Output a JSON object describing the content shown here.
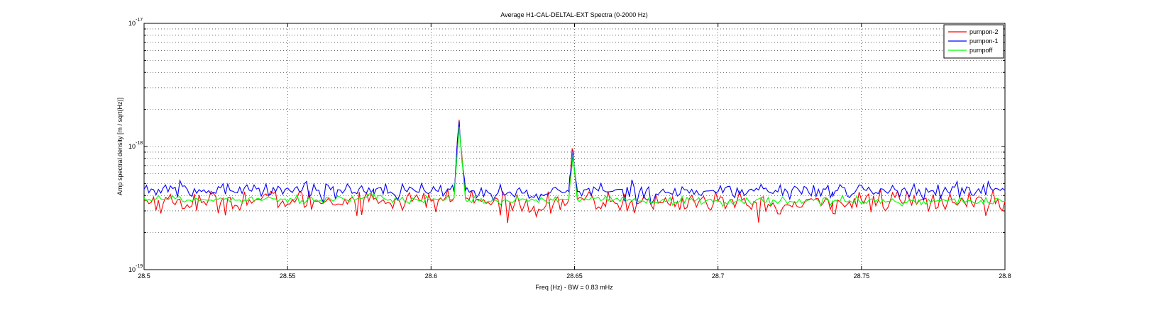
{
  "chart_data": {
    "type": "line",
    "title": "Average H1-CAL-DELTAL-EXT Spectra (0-2000 Hz)",
    "xlabel": "Freq (Hz) - BW = 0.83 mHz",
    "ylabel": "Amp spectral density [m / sqrt(Hz)]",
    "xlim": [
      28.5,
      28.8
    ],
    "ylim": [
      1e-19,
      1e-17
    ],
    "yscale": "log",
    "grid": true,
    "legend_position": "top-right",
    "x_ticks": [
      "28.5",
      "28.55",
      "28.6",
      "28.65",
      "28.7",
      "28.75",
      "28.8"
    ],
    "y_ticks": [
      {
        "base": "10",
        "exp": "-19",
        "value": 1e-19
      },
      {
        "base": "10",
        "exp": "-18",
        "value": 1e-18
      },
      {
        "base": "10",
        "exp": "-17",
        "value": 1e-17
      }
    ],
    "series": [
      {
        "name": "pumpon-2",
        "color": "#ff0000",
        "x": [
          28.5,
          28.52,
          28.54,
          28.56,
          28.58,
          28.6,
          28.608,
          28.6098,
          28.612,
          28.62,
          28.64,
          28.648,
          28.6495,
          28.651,
          28.66,
          28.68,
          28.7,
          28.72,
          28.74,
          28.76,
          28.78,
          28.8
        ],
        "values": [
          3.6e-19,
          3.5e-19,
          3.7e-19,
          3.6e-19,
          3.7e-19,
          3.6e-19,
          3.8e-19,
          1.65e-18,
          3.8e-19,
          3.5e-19,
          3.3e-19,
          3.7e-19,
          9e-19,
          3.7e-19,
          3.5e-19,
          3.5e-19,
          3.6e-19,
          3.2e-19,
          3.5e-19,
          3.6e-19,
          3.5e-19,
          3.6e-19
        ]
      },
      {
        "name": "pumpon-1",
        "color": "#0000ff",
        "x": [
          28.5,
          28.52,
          28.54,
          28.56,
          28.58,
          28.6,
          28.608,
          28.6098,
          28.612,
          28.62,
          28.64,
          28.648,
          28.6495,
          28.651,
          28.66,
          28.68,
          28.7,
          28.72,
          28.74,
          28.76,
          28.78,
          28.8
        ],
        "values": [
          4.5e-19,
          4.3e-19,
          4.6e-19,
          4.4e-19,
          4.5e-19,
          4.3e-19,
          4.3e-19,
          1.6e-18,
          4.4e-19,
          4.2e-19,
          4.1e-19,
          4.3e-19,
          9.3e-19,
          4.3e-19,
          4.4e-19,
          4.3e-19,
          4.3e-19,
          4.4e-19,
          4.3e-19,
          4.4e-19,
          4.3e-19,
          4.4e-19
        ]
      },
      {
        "name": "pumpoff",
        "color": "#00ff00",
        "x": [
          28.5,
          28.52,
          28.54,
          28.56,
          28.58,
          28.6,
          28.608,
          28.6098,
          28.612,
          28.62,
          28.64,
          28.648,
          28.6495,
          28.651,
          28.66,
          28.68,
          28.7,
          28.72,
          28.74,
          28.76,
          28.78,
          28.8
        ],
        "values": [
          3.8e-19,
          3.7e-19,
          3.8e-19,
          3.7e-19,
          3.8e-19,
          3.7e-19,
          3.8e-19,
          1.45e-18,
          3.7e-19,
          3.6e-19,
          3.6e-19,
          3.7e-19,
          8.5e-19,
          3.7e-19,
          3.7e-19,
          3.6e-19,
          3.6e-19,
          3.6e-19,
          3.6e-19,
          3.6e-19,
          3.6e-19,
          3.6e-19
        ]
      }
    ]
  }
}
